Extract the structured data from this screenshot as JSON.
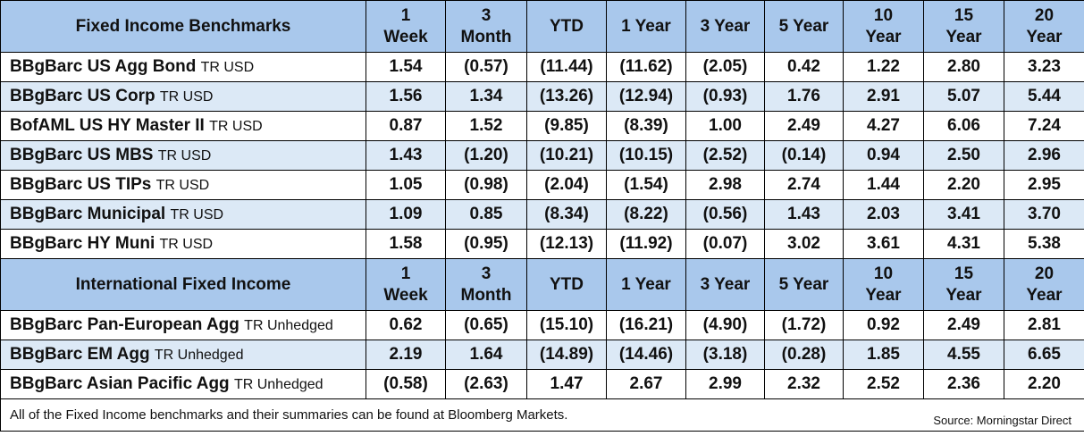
{
  "headers": [
    "1 Week",
    "3 Month",
    "YTD",
    "1 Year",
    "3 Year",
    "5 Year",
    "10 Year",
    "15 Year",
    "20 Year"
  ],
  "header_lines": [
    [
      "1",
      "Week"
    ],
    [
      "3",
      "Month"
    ],
    [
      "YTD"
    ],
    [
      "1 Year"
    ],
    [
      "3 Year"
    ],
    [
      "5 Year"
    ],
    [
      "10",
      "Year"
    ],
    [
      "15",
      "Year"
    ],
    [
      "20",
      "Year"
    ]
  ],
  "sections": [
    {
      "title": "Fixed Income Benchmarks",
      "rows": [
        {
          "name": "BBgBarc US Agg Bond",
          "suffix": "TR USD",
          "values": [
            "1.54",
            "(0.57)",
            "(11.44)",
            "(11.62)",
            "(2.05)",
            "0.42",
            "1.22",
            "2.80",
            "3.23"
          ]
        },
        {
          "name": "BBgBarc US Corp",
          "suffix": "TR USD",
          "values": [
            "1.56",
            "1.34",
            "(13.26)",
            "(12.94)",
            "(0.93)",
            "1.76",
            "2.91",
            "5.07",
            "5.44"
          ]
        },
        {
          "name": "BofAML US HY Master II",
          "suffix": "TR USD",
          "values": [
            "0.87",
            "1.52",
            "(9.85)",
            "(8.39)",
            "1.00",
            "2.49",
            "4.27",
            "6.06",
            "7.24"
          ]
        },
        {
          "name": "BBgBarc US MBS",
          "suffix": "TR USD",
          "values": [
            "1.43",
            "(1.20)",
            "(10.21)",
            "(10.15)",
            "(2.52)",
            "(0.14)",
            "0.94",
            "2.50",
            "2.96"
          ]
        },
        {
          "name": "BBgBarc US TIPs",
          "suffix": "TR USD",
          "values": [
            "1.05",
            "(0.98)",
            "(2.04)",
            "(1.54)",
            "2.98",
            "2.74",
            "1.44",
            "2.20",
            "2.95"
          ]
        },
        {
          "name": "BBgBarc Municipal",
          "suffix": "TR USD",
          "values": [
            "1.09",
            "0.85",
            "(8.34)",
            "(8.22)",
            "(0.56)",
            "1.43",
            "2.03",
            "3.41",
            "3.70"
          ]
        },
        {
          "name": "BBgBarc HY Muni",
          "suffix": "TR USD",
          "values": [
            "1.58",
            "(0.95)",
            "(12.13)",
            "(11.92)",
            "(0.07)",
            "3.02",
            "3.61",
            "4.31",
            "5.38"
          ]
        }
      ]
    },
    {
      "title": "International Fixed Income",
      "rows": [
        {
          "name": "BBgBarc Pan-European Agg",
          "suffix": "TR Unhedged",
          "values": [
            "0.62",
            "(0.65)",
            "(15.10)",
            "(16.21)",
            "(4.90)",
            "(1.72)",
            "0.92",
            "2.49",
            "2.81"
          ]
        },
        {
          "name": "BBgBarc EM Agg",
          "suffix": "TR Unhedged",
          "values": [
            "2.19",
            "1.64",
            "(14.89)",
            "(14.46)",
            "(3.18)",
            "(0.28)",
            "1.85",
            "4.55",
            "6.65"
          ]
        },
        {
          "name": "BBgBarc Asian Pacific Agg",
          "suffix": "TR Unhedged",
          "values": [
            "(0.58)",
            "(2.63)",
            "1.47",
            "2.67",
            "2.99",
            "2.32",
            "2.52",
            "2.36",
            "2.20"
          ]
        }
      ]
    }
  ],
  "footer": {
    "note": "All of the Fixed Income benchmarks and their summaries can be found at Bloomberg Markets.",
    "source": "Source: Morningstar Direct"
  },
  "colors": {
    "header_bg": "#a9c8ec",
    "alt_row_bg": "#dce9f6",
    "negative": "#e00000"
  }
}
